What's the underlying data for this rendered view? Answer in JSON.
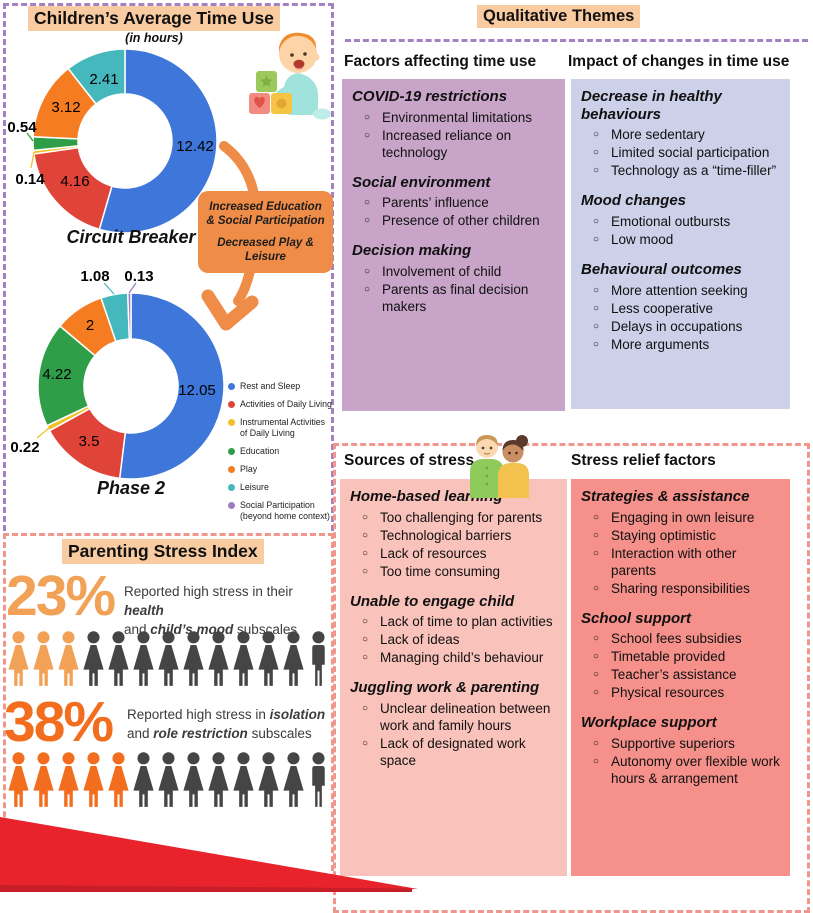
{
  "colors": {
    "highlight_peach": "#F9CBA0",
    "purple_dash": "#A382C4",
    "pink_dash": "#F0968D",
    "arrow_orange": "#EF8C47",
    "wedge_red": "#E8232B",
    "wedge_red_dark": "#C51E27"
  },
  "time_use": {
    "title": "Children’s Average Time Use",
    "subtitle": "(in hours)",
    "arrow_note": {
      "line1": "Increased Education & Social Participation",
      "line2": "Decreased Play & Leisure"
    }
  },
  "chart_data": [
    {
      "type": "donut",
      "title": "Circuit Breaker",
      "unit": "hours",
      "categories": [
        "Rest and Sleep",
        "Activities of Daily Living",
        "Instrumental Activities of Daily Living",
        "Education",
        "Play",
        "Leisure"
      ],
      "values": [
        12.42,
        4.16,
        0.14,
        0.54,
        3.12,
        2.41
      ],
      "colors": [
        "#3E76D9",
        "#E04438",
        "#F2C029",
        "#2F9E48",
        "#F57C20",
        "#45B8BD"
      ]
    },
    {
      "type": "donut",
      "title": "Phase 2",
      "unit": "hours",
      "categories": [
        "Rest and Sleep",
        "Activities of Daily Living",
        "Instrumental Activities of Daily Living",
        "Education",
        "Play",
        "Leisure",
        "Social Participation (beyond home context)"
      ],
      "values": [
        12.05,
        3.5,
        0.22,
        4.22,
        2,
        1.08,
        0.13
      ],
      "colors": [
        "#3E76D9",
        "#E04438",
        "#F2C029",
        "#2F9E48",
        "#F57C20",
        "#45B8BD",
        "#9E7BC3"
      ]
    }
  ],
  "legend": {
    "items": [
      {
        "label": "Rest and Sleep",
        "color": "#3E76D9"
      },
      {
        "label": "Activities of Daily Living",
        "color": "#E04438"
      },
      {
        "label": "Instrumental Activities of Daily Living",
        "color": "#F2C029"
      },
      {
        "label": "Education",
        "color": "#2F9E48"
      },
      {
        "label": "Play",
        "color": "#F57C20"
      },
      {
        "label": "Leisure",
        "color": "#45B8BD"
      },
      {
        "label": "Social Participation (beyond home context)",
        "color": "#9E7BC3"
      }
    ]
  },
  "qualitative": {
    "title": "Qualitative Themes",
    "factors": {
      "header": "Factors affecting time use",
      "bg": "#C7A4C8",
      "groups": [
        {
          "header": "COVID-19 restrictions",
          "items": [
            "Environmental limitations",
            "Increased reliance on technology"
          ]
        },
        {
          "header": "Social environment",
          "items": [
            "Parents’ influence",
            "Presence of other children"
          ]
        },
        {
          "header": "Decision making",
          "items": [
            "Involvement of child",
            "Parents as final decision makers"
          ]
        }
      ]
    },
    "impact": {
      "header": "Impact of changes in time use",
      "bg": "#CDD0E9",
      "groups": [
        {
          "header": "Decrease in healthy behaviours",
          "items": [
            "More sedentary",
            "Limited social participation",
            "Technology as a “time-filler”"
          ]
        },
        {
          "header": "Mood changes",
          "items": [
            "Emotional outbursts",
            "Low mood"
          ]
        },
        {
          "header": "Behavioural outcomes",
          "items": [
            "More attention seeking",
            "Less cooperative",
            "Delays in occupations",
            "More arguments"
          ]
        }
      ]
    }
  },
  "stress": {
    "sources": {
      "header": "Sources of stress",
      "bg": "#F9C2BB",
      "groups": [
        {
          "header": "Home-based learning",
          "items": [
            "Too challenging for parents",
            "Technological barriers",
            "Lack of resources",
            "Too time consuming"
          ]
        },
        {
          "header": "Unable to engage child",
          "items": [
            "Lack of time to plan activities",
            "Lack of ideas",
            "Managing child’s behaviour"
          ]
        },
        {
          "header": "Juggling work & parenting",
          "items": [
            "Unclear delineation between work and family hours",
            "Lack of designated work space"
          ]
        }
      ]
    },
    "relief": {
      "header": "Stress relief factors",
      "bg": "#F5908A",
      "groups": [
        {
          "header": "Strategies & assistance",
          "items": [
            "Engaging in own leisure",
            "Staying optimistic",
            "Interaction with other parents",
            "Sharing responsibilities"
          ]
        },
        {
          "header": "School support",
          "items": [
            "School fees subsidies",
            "Timetable provided",
            "Teacher’s assistance",
            "Physical resources"
          ]
        },
        {
          "header": "Workplace support",
          "items": [
            "Supportive superiors",
            "Autonomy over flexible work hours & arrangement"
          ]
        }
      ]
    }
  },
  "psi": {
    "title": "Parenting Stress Index",
    "icon_dark_color": "#454545",
    "stats": [
      {
        "pct": "23%",
        "color": "#F2A257",
        "line1_pre": "Reported high stress in their ",
        "line1_em": "health",
        "line2_pre": "and ",
        "line2_em": "child’s mood",
        "line2_post": " subscales",
        "icons_total": 13,
        "icons_highlighted": 3
      },
      {
        "pct": "38%",
        "color": "#F26E1E",
        "line1_pre": "Reported high stress in ",
        "line1_em": "isolation",
        "line2_pre": "and ",
        "line2_em": "role restriction",
        "line2_post": " subscales",
        "icons_total": 13,
        "icons_highlighted": 5
      }
    ]
  }
}
